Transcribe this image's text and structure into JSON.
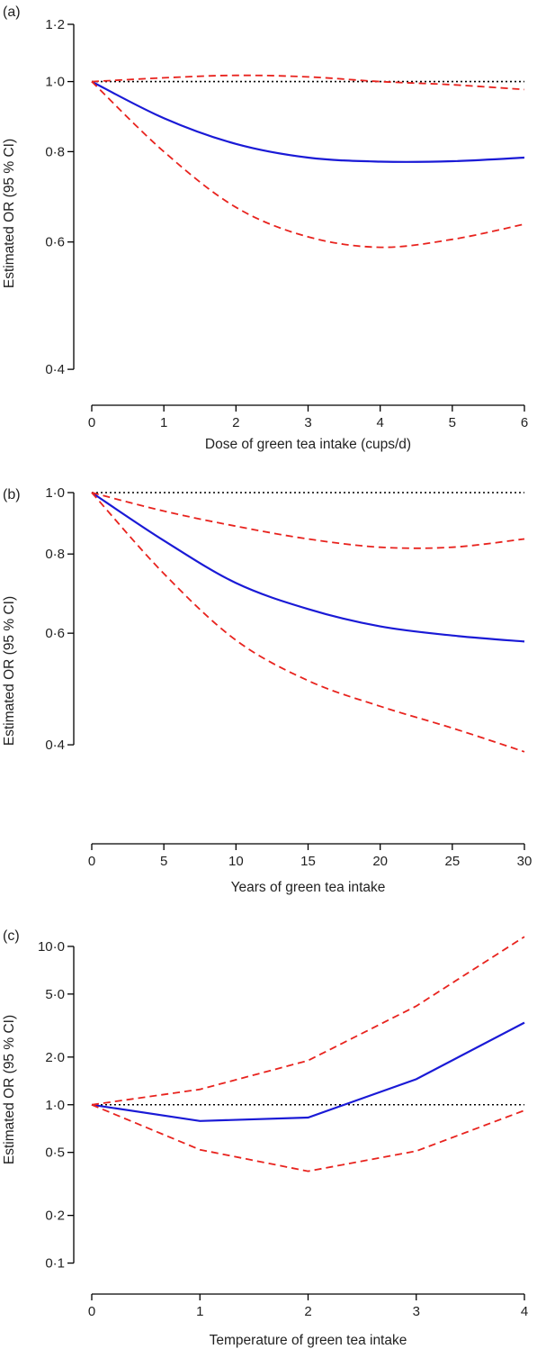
{
  "chart_data": [
    {
      "type": "line",
      "panel_label": "(a)",
      "xlabel": "Dose of green tea intake (cups/d)",
      "ylabel": "Estimated OR (95 % CI)",
      "y_scale": "log",
      "xlim": [
        0,
        6
      ],
      "ylim": [
        0.38,
        1.2
      ],
      "x_ticks": [
        0,
        1,
        2,
        3,
        4,
        5,
        6
      ],
      "x_tick_labels": [
        "0",
        "1",
        "2",
        "3",
        "4",
        "5",
        "6"
      ],
      "y_ticks": [
        0.4,
        0.6,
        0.8,
        1.0,
        1.2
      ],
      "y_tick_labels": [
        "0·4",
        "0·6",
        "0·8",
        "1·0",
        "1·2"
      ],
      "reference_line": 1.0,
      "x": [
        0,
        1,
        2,
        3,
        4,
        5,
        6
      ],
      "series": [
        {
          "role": "estimate",
          "color": "#1a1ad6",
          "values": [
            1.0,
            0.89,
            0.82,
            0.785,
            0.775,
            0.776,
            0.785
          ]
        },
        {
          "role": "upper",
          "color": "#e8231e",
          "values": [
            1.0,
            1.012,
            1.02,
            1.015,
            1.0,
            0.99,
            0.975
          ]
        },
        {
          "role": "lower",
          "color": "#e8231e",
          "values": [
            1.0,
            0.8,
            0.67,
            0.61,
            0.59,
            0.605,
            0.635
          ]
        }
      ]
    },
    {
      "type": "line",
      "panel_label": "(b)",
      "xlabel": "Years of green tea intake",
      "ylabel": "Estimated OR (95 % CI)",
      "y_scale": "log",
      "xlim": [
        0,
        30
      ],
      "ylim": [
        0.3,
        1.0
      ],
      "x_ticks": [
        0,
        5,
        10,
        15,
        20,
        25,
        30
      ],
      "x_tick_labels": [
        "0",
        "5",
        "10",
        "15",
        "20",
        "25",
        "30"
      ],
      "y_ticks": [
        0.4,
        0.6,
        0.8,
        1.0
      ],
      "y_tick_labels": [
        "0·4",
        "0·6",
        "0·8",
        "1·0"
      ],
      "reference_line": 1.0,
      "x": [
        0,
        5,
        10,
        15,
        20,
        25,
        30
      ],
      "series": [
        {
          "role": "estimate",
          "color": "#1a1ad6",
          "values": [
            1.0,
            0.84,
            0.72,
            0.655,
            0.615,
            0.595,
            0.582
          ]
        },
        {
          "role": "upper",
          "color": "#e8231e",
          "values": [
            1.0,
            0.935,
            0.885,
            0.845,
            0.82,
            0.82,
            0.845
          ]
        },
        {
          "role": "lower",
          "color": "#e8231e",
          "values": [
            1.0,
            0.745,
            0.585,
            0.505,
            0.46,
            0.425,
            0.39
          ]
        }
      ]
    },
    {
      "type": "line",
      "panel_label": "(c)",
      "xlabel": "Temperature of green tea intake",
      "ylabel": "Estimated OR (95 % CI)",
      "y_scale": "log",
      "xlim": [
        0,
        4
      ],
      "ylim": [
        0.085,
        12
      ],
      "x_ticks": [
        0,
        1,
        2,
        3,
        4
      ],
      "x_tick_labels": [
        "0",
        "1",
        "2",
        "3",
        "4"
      ],
      "y_ticks": [
        0.1,
        0.2,
        0.5,
        1.0,
        2.0,
        5.0,
        10.0
      ],
      "y_tick_labels": [
        "0·1",
        "0·2",
        "0·5",
        "1·0",
        "2·0",
        "5·0",
        "10·0"
      ],
      "reference_line": 1.0,
      "x": [
        0,
        1,
        2,
        3,
        4
      ],
      "series": [
        {
          "role": "estimate",
          "color": "#1a1ad6",
          "values": [
            1.0,
            0.79,
            0.83,
            1.45,
            3.3
          ]
        },
        {
          "role": "upper",
          "color": "#e8231e",
          "values": [
            1.0,
            1.25,
            1.9,
            4.2,
            11.5
          ]
        },
        {
          "role": "lower",
          "color": "#e8231e",
          "values": [
            1.0,
            0.52,
            0.38,
            0.51,
            0.92
          ]
        }
      ]
    }
  ]
}
